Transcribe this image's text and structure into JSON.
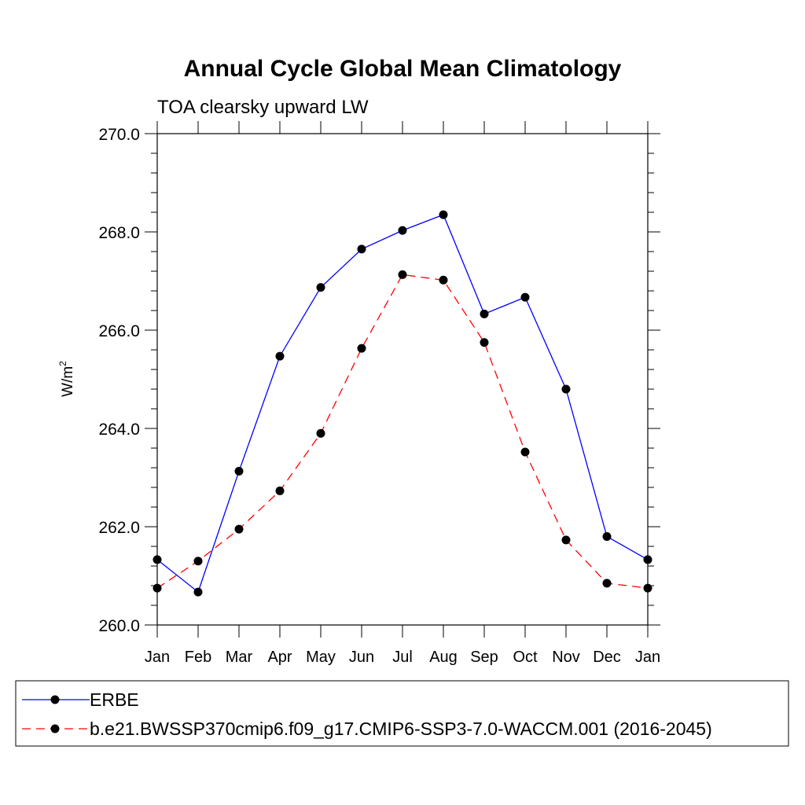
{
  "chart_data": {
    "type": "line",
    "title": "Annual Cycle Global Mean Climatology",
    "subtitle": "TOA clearsky upward LW",
    "ylabel": "W/m",
    "ylabel_superscript": "2",
    "xlabel": "",
    "categories": [
      "Jan",
      "Feb",
      "Mar",
      "Apr",
      "May",
      "Jun",
      "Jul",
      "Aug",
      "Sep",
      "Oct",
      "Nov",
      "Dec",
      "Jan"
    ],
    "ylim": [
      260.0,
      270.0
    ],
    "yticks": [
      "260.0",
      "262.0",
      "264.0",
      "266.0",
      "268.0",
      "270.0"
    ],
    "grid": false,
    "legend_position": "bottom",
    "series": [
      {
        "name": "ERBE",
        "color": "#0000ff",
        "dash": "solid",
        "marker": "filled-circle",
        "values": [
          261.33,
          260.67,
          263.13,
          265.47,
          266.87,
          267.65,
          268.03,
          268.35,
          266.33,
          266.67,
          264.8,
          261.8,
          261.33
        ]
      },
      {
        "name": "b.e21.BWSSP370cmip6.f09_g17.CMIP6-SSP3-7.0-WACCM.001 (2016-2045)",
        "color": "#ff0000",
        "dash": "dashed",
        "marker": "filled-circle",
        "values": [
          260.75,
          261.3,
          261.95,
          262.73,
          263.9,
          265.63,
          267.13,
          267.02,
          265.75,
          263.52,
          261.73,
          260.85,
          260.75
        ]
      }
    ]
  }
}
